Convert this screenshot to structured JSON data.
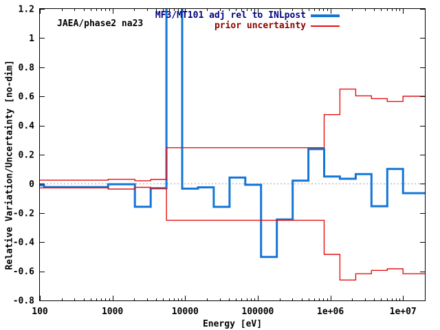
{
  "figure": {
    "annotation": "JAEA/phase2 na23",
    "xlabel": "Energy [eV]",
    "ylabel": "Relative Variation/Uncertainty [no-dim]",
    "background": "#ffffff",
    "border_color": "#000000",
    "zero_line_color": "#9e9e9e",
    "legend": [
      {
        "label": "MF3/MT101 adj rel to INLpost",
        "text_color": "#000080",
        "line_color": "#1375d6"
      },
      {
        "label": "prior uncertainty",
        "text_color": "#8b0000",
        "line_color": "#e30f10"
      }
    ]
  },
  "chart_data": {
    "type": "line",
    "subtype": "step-histogram",
    "x_scale": "log",
    "xlim": [
      100,
      20000000
    ],
    "ylim": [
      -0.8,
      1.2
    ],
    "grid": "zero-line-only",
    "legend_position": "top-right-inside",
    "x_ticks": [
      {
        "v": 100,
        "label": "100"
      },
      {
        "v": 1000,
        "label": "1000"
      },
      {
        "v": 10000,
        "label": "10000"
      },
      {
        "v": 100000,
        "label": "100000"
      },
      {
        "v": 1000000,
        "label": "1e+06"
      },
      {
        "v": 10000000,
        "label": "1e+07"
      }
    ],
    "y_ticks": [
      {
        "v": -0.8,
        "label": "-0.8"
      },
      {
        "v": -0.6,
        "label": "-0.6"
      },
      {
        "v": -0.4,
        "label": "-0.4"
      },
      {
        "v": -0.2,
        "label": "-0.2"
      },
      {
        "v": 0,
        "label": "0"
      },
      {
        "v": 0.2,
        "label": "0.2"
      },
      {
        "v": 0.4,
        "label": "0.4"
      },
      {
        "v": 0.6,
        "label": "0.6"
      },
      {
        "v": 0.8,
        "label": "0.8"
      },
      {
        "v": 1,
        "label": "1"
      },
      {
        "v": 1.2,
        "label": "1.2"
      }
    ],
    "series": [
      {
        "name": "MF3/MT101 adj rel to INLpost",
        "color": "#1375d6",
        "width": 3,
        "edges": [
          100,
          114,
          870,
          2035,
          3355,
          5531,
          9119,
          15034,
          24788,
          40868,
          67379,
          111090,
          183156,
          302755,
          497871,
          820850,
          1353400,
          2231300,
          3678800,
          6065300,
          10000000,
          20000000
        ],
        "values": [
          -0.01,
          -0.022,
          -0.003,
          -0.157,
          -0.03,
          1.35,
          -0.033,
          -0.024,
          -0.158,
          0.043,
          -0.006,
          -0.502,
          -0.245,
          0.022,
          0.238,
          0.05,
          0.035,
          0.067,
          -0.154,
          0.102,
          -0.064
        ],
        "note": "segment 5531-9119 eV exceeds ymax and is clipped at top of plot"
      },
      {
        "name": "prior uncertainty (upper)",
        "color": "#e30f10",
        "width": 1.4,
        "edges": [
          100,
          870,
          2035,
          3355,
          5531,
          820850,
          1353400,
          2231300,
          3678800,
          6065300,
          10000000,
          20000000
        ],
        "values": [
          0.025,
          0.031,
          0.021,
          0.03,
          0.248,
          0.475,
          0.65,
          0.604,
          0.585,
          0.565,
          0.601
        ]
      },
      {
        "name": "prior uncertainty (lower)",
        "color": "#e30f10",
        "width": 1.4,
        "edges": [
          100,
          870,
          2035,
          3355,
          5531,
          820850,
          1353400,
          2231300,
          3678800,
          6065300,
          10000000,
          20000000
        ],
        "values": [
          -0.028,
          -0.036,
          -0.024,
          -0.033,
          -0.25,
          -0.484,
          -0.66,
          -0.617,
          -0.594,
          -0.583,
          -0.617
        ]
      }
    ]
  }
}
